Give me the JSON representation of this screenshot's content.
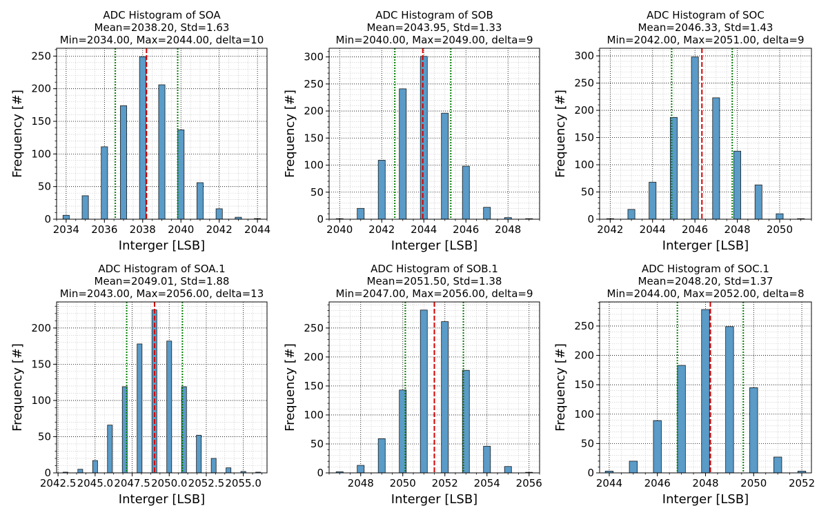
{
  "style": {
    "bar_fill": "#5a9bc8",
    "bar_stroke": "#1a1a1a",
    "mean_line_color": "#d60000",
    "std_line_color": "#008000",
    "major_grid_color": "#000000",
    "minor_grid_color": "#c8c8c8"
  },
  "chart_data": [
    {
      "type": "bar",
      "title": "ADC Histogram of SOA",
      "subtitle_stats": "Mean=2038.20, Std=1.63",
      "subtitle_range": "Min=2034.00, Max=2044.00, delta=10",
      "xlabel": "Interger [LSB]",
      "ylabel": "Frequency [#]",
      "grid": true,
      "xlim": [
        2033.5,
        2044.5
      ],
      "ylim": [
        0,
        262
      ],
      "xticks": [
        2034,
        2036,
        2038,
        2040,
        2042,
        2044
      ],
      "xtick_labels": [
        "2034",
        "2036",
        "2038",
        "2040",
        "2042",
        "2044"
      ],
      "yticks": [
        0,
        50,
        100,
        150,
        200,
        250
      ],
      "ytick_labels": [
        "0",
        "50",
        "100",
        "150",
        "200",
        "250"
      ],
      "x": [
        2034,
        2035,
        2036,
        2037,
        2038,
        2039,
        2040,
        2041,
        2042,
        2043,
        2044
      ],
      "values": [
        6,
        36,
        111,
        174,
        249,
        206,
        137,
        56,
        16,
        3,
        1
      ],
      "mean": 2038.2,
      "std_lines": [
        2036.57,
        2039.83
      ]
    },
    {
      "type": "bar",
      "title": "ADC Histogram of SOB",
      "subtitle_stats": "Mean=2043.95, Std=1.33",
      "subtitle_range": "Min=2040.00, Max=2049.00, delta=9",
      "xlabel": "Interger [LSB]",
      "ylabel": "Frequency [#]",
      "grid": true,
      "xlim": [
        2039.5,
        2049.5
      ],
      "ylim": [
        0,
        316
      ],
      "xticks": [
        2040,
        2042,
        2044,
        2046,
        2048
      ],
      "xtick_labels": [
        "2040",
        "2042",
        "2044",
        "2046",
        "2048"
      ],
      "yticks": [
        0,
        50,
        100,
        150,
        200,
        250,
        300
      ],
      "ytick_labels": [
        "0",
        "50",
        "100",
        "150",
        "200",
        "250",
        "300"
      ],
      "x": [
        2040,
        2041,
        2042,
        2043,
        2044,
        2045,
        2046,
        2047,
        2048,
        2049
      ],
      "values": [
        1,
        20,
        109,
        241,
        301,
        196,
        98,
        22,
        3,
        1
      ],
      "mean": 2043.95,
      "std_lines": [
        2042.62,
        2045.28
      ]
    },
    {
      "type": "bar",
      "title": "ADC Histogram of SOC",
      "subtitle_stats": "Mean=2046.33, Std=1.43",
      "subtitle_range": "Min=2042.00, Max=2051.00, delta=9",
      "xlabel": "Interger [LSB]",
      "ylabel": "Frequency [#]",
      "grid": true,
      "xlim": [
        2041.5,
        2051.5
      ],
      "ylim": [
        0,
        314
      ],
      "xticks": [
        2042,
        2044,
        2046,
        2048,
        2050
      ],
      "xtick_labels": [
        "2042",
        "2044",
        "2046",
        "2048",
        "2050"
      ],
      "yticks": [
        0,
        50,
        100,
        150,
        200,
        250,
        300
      ],
      "ytick_labels": [
        "0",
        "50",
        "100",
        "150",
        "200",
        "250",
        "300"
      ],
      "x": [
        2042,
        2043,
        2044,
        2045,
        2046,
        2047,
        2048,
        2049,
        2050,
        2051
      ],
      "values": [
        1,
        18,
        68,
        187,
        298,
        223,
        125,
        63,
        10,
        1
      ],
      "mean": 2046.33,
      "std_lines": [
        2044.9,
        2047.76
      ]
    },
    {
      "type": "bar",
      "title": "ADC Histogram of SOA.1",
      "subtitle_stats": "Mean=2049.01, Std=1.88",
      "subtitle_range": "Min=2043.00, Max=2056.00, delta=13",
      "xlabel": "Interger [LSB]",
      "ylabel": "Frequency [#]",
      "grid": true,
      "xlim": [
        2042.4,
        2056.6
      ],
      "ylim": [
        0,
        236
      ],
      "xticks": [
        2042.5,
        2045.0,
        2047.5,
        2050.0,
        2052.5,
        2055.0
      ],
      "xtick_labels": [
        "2042.5",
        "2045.0",
        "2047.5",
        "2050.0",
        "2052.5",
        "2055.0"
      ],
      "yticks": [
        0,
        50,
        100,
        150,
        200
      ],
      "ytick_labels": [
        "0",
        "50",
        "100",
        "150",
        "200"
      ],
      "x": [
        2043,
        2044,
        2045,
        2046,
        2047,
        2048,
        2049,
        2050,
        2051,
        2052,
        2053,
        2054,
        2055,
        2056
      ],
      "values": [
        1,
        5,
        17,
        66,
        119,
        178,
        225,
        182,
        119,
        52,
        20,
        7,
        2,
        1
      ],
      "mean": 2049.01,
      "std_lines": [
        2047.13,
        2050.89
      ]
    },
    {
      "type": "bar",
      "title": "ADC Histogram of SOB.1",
      "subtitle_stats": "Mean=2051.50, Std=1.38",
      "subtitle_range": "Min=2047.00, Max=2056.00, delta=9",
      "xlabel": "Interger [LSB]",
      "ylabel": "Frequency [#]",
      "grid": true,
      "xlim": [
        2046.5,
        2056.5
      ],
      "ylim": [
        0,
        295
      ],
      "xticks": [
        2048,
        2050,
        2052,
        2054,
        2056
      ],
      "xtick_labels": [
        "2048",
        "2050",
        "2052",
        "2054",
        "2056"
      ],
      "yticks": [
        0,
        50,
        100,
        150,
        200,
        250
      ],
      "ytick_labels": [
        "0",
        "50",
        "100",
        "150",
        "200",
        "250"
      ],
      "x": [
        2047,
        2048,
        2049,
        2050,
        2051,
        2052,
        2053,
        2054,
        2055,
        2056
      ],
      "values": [
        2,
        13,
        59,
        143,
        281,
        261,
        177,
        46,
        11,
        1
      ],
      "mean": 2051.5,
      "std_lines": [
        2050.12,
        2052.88
      ]
    },
    {
      "type": "bar",
      "title": "ADC Histogram of SOC.1",
      "subtitle_stats": "Mean=2048.20, Std=1.37",
      "subtitle_range": "Min=2044.00, Max=2052.00, delta=8",
      "xlabel": "Interger [LSB]",
      "ylabel": "Frequency [#]",
      "grid": true,
      "xlim": [
        2043.6,
        2052.4
      ],
      "ylim": [
        0,
        291
      ],
      "xticks": [
        2044,
        2046,
        2048,
        2050,
        2052
      ],
      "xtick_labels": [
        "2044",
        "2046",
        "2048",
        "2050",
        "2052"
      ],
      "yticks": [
        0,
        50,
        100,
        150,
        200,
        250
      ],
      "ytick_labels": [
        "0",
        "50",
        "100",
        "150",
        "200",
        "250"
      ],
      "x": [
        2044,
        2045,
        2046,
        2047,
        2048,
        2049,
        2050,
        2051,
        2052
      ],
      "values": [
        3,
        20,
        89,
        183,
        278,
        249,
        145,
        27,
        3
      ],
      "mean": 2048.2,
      "std_lines": [
        2046.83,
        2049.57
      ]
    }
  ]
}
